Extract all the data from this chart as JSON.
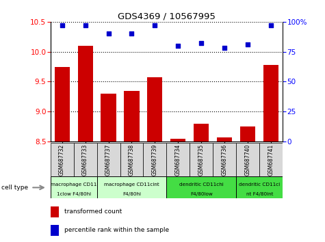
{
  "title": "GDS4369 / 10567995",
  "samples": [
    "GSM687732",
    "GSM687733",
    "GSM687737",
    "GSM687738",
    "GSM687739",
    "GSM687734",
    "GSM687735",
    "GSM687736",
    "GSM687740",
    "GSM687741"
  ],
  "red_values": [
    9.75,
    10.1,
    9.3,
    9.35,
    9.57,
    8.55,
    8.8,
    8.57,
    8.75,
    9.78
  ],
  "blue_values": [
    97,
    97,
    90,
    90,
    97,
    80,
    82,
    78,
    81,
    97
  ],
  "ylim_left": [
    8.5,
    10.5
  ],
  "ylim_right": [
    0,
    100
  ],
  "yticks_left": [
    8.5,
    9.0,
    9.5,
    10.0,
    10.5
  ],
  "yticks_right": [
    0,
    25,
    50,
    75,
    100
  ],
  "cell_groups": [
    {
      "label": "macrophage CD11\n1clow F4/80hi",
      "start": 0,
      "end": 2,
      "color": "#ccffcc"
    },
    {
      "label": "macrophage CD11cint\nF4/80hi",
      "start": 2,
      "end": 5,
      "color": "#ccffcc"
    },
    {
      "label": "dendritic CD11chi\nF4/80low",
      "start": 5,
      "end": 8,
      "color": "#44dd44"
    },
    {
      "label": "dendritic CD11ci\nnt F4/80int",
      "start": 8,
      "end": 10,
      "color": "#44dd44"
    }
  ],
  "legend_red": "transformed count",
  "legend_blue": "percentile rank within the sample",
  "cell_type_label": "cell type",
  "bar_color": "#cc0000",
  "dot_color": "#0000cc",
  "bar_bottom": 8.5,
  "bar_width": 0.65,
  "bg_color": "#f0f0f0"
}
